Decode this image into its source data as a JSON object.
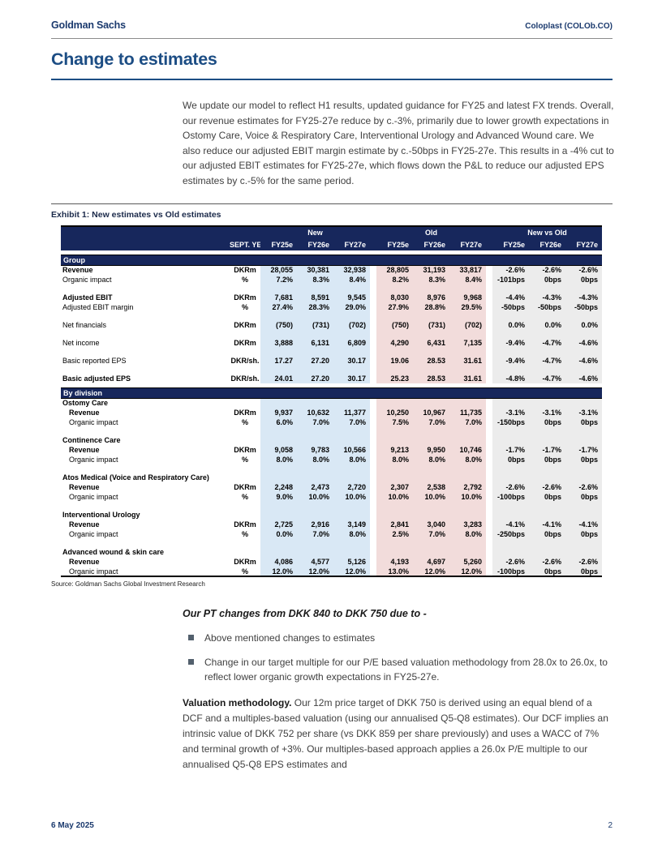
{
  "colors": {
    "navy_bar": "#17275c",
    "navy_text": "#1b3a6e",
    "heading_blue": "#1c4d84",
    "highlight_new": "#d9e8f5",
    "highlight_old": "#f2dcdb",
    "highlight_diff": "#ececec"
  },
  "header": {
    "brand": "Goldman Sachs",
    "ticker": "Coloplast (COLOb.CO)"
  },
  "page_title": "Change to estimates",
  "intro": "We update our model to reflect H1 results, updated guidance for FY25 and latest FX trends. Overall, our revenue estimates for FY25-27e reduce by c.-3%, primarily due to lower growth expectations in Ostomy Care, Voice & Respiratory Care, Interventional Urology and Advanced Wound care. We also reduce our adjusted EBIT margin estimate by c.-50bps in FY25-27e. This results in a -4% cut to our adjusted EBIT estimates for FY25-27e, which flows down the P&L to reduce our adjusted EPS estimates by c.-5% for the same period.",
  "exhibit": {
    "title": "Exhibit 1: New estimates vs Old estimates",
    "source": "Source: Goldman Sachs Global Investment Research"
  },
  "table": {
    "col_groups": [
      "New",
      "Old",
      "New vs Old"
    ],
    "unit_header": "SEPT. YE",
    "year_headers": [
      "FY25e",
      "FY26e",
      "FY27e"
    ],
    "sections": [
      {
        "title": "Group",
        "rows": [
          {
            "type": "data",
            "label": "Revenue",
            "bold": true,
            "unit": "DKRm",
            "new": [
              "28,055",
              "30,381",
              "32,938"
            ],
            "old": [
              "28,805",
              "31,193",
              "33,817"
            ],
            "diff": [
              "-2.6%",
              "-2.6%",
              "-2.6%"
            ]
          },
          {
            "type": "data",
            "label": "Organic impact",
            "bold": false,
            "unit": "%",
            "new": [
              "7.2%",
              "8.3%",
              "8.4%"
            ],
            "old": [
              "8.2%",
              "8.3%",
              "8.4%"
            ],
            "diff": [
              "-101bps",
              "0bps",
              "0bps"
            ]
          },
          {
            "type": "spacer"
          },
          {
            "type": "data",
            "label": "Adjusted EBIT",
            "bold": true,
            "unit": "DKRm",
            "new": [
              "7,681",
              "8,591",
              "9,545"
            ],
            "old": [
              "8,030",
              "8,976",
              "9,968"
            ],
            "diff": [
              "-4.4%",
              "-4.3%",
              "-4.3%"
            ]
          },
          {
            "type": "data",
            "label": "Adjusted EBIT margin",
            "bold": false,
            "unit": "%",
            "new": [
              "27.4%",
              "28.3%",
              "29.0%"
            ],
            "old": [
              "27.9%",
              "28.8%",
              "29.5%"
            ],
            "diff": [
              "-50bps",
              "-50bps",
              "-50bps"
            ]
          },
          {
            "type": "spacer"
          },
          {
            "type": "data",
            "label": "Net financials",
            "bold": false,
            "unit": "DKRm",
            "new": [
              "(750)",
              "(731)",
              "(702)"
            ],
            "old": [
              "(750)",
              "(731)",
              "(702)"
            ],
            "diff": [
              "0.0%",
              "0.0%",
              "0.0%"
            ]
          },
          {
            "type": "spacer"
          },
          {
            "type": "data",
            "label": "Net income",
            "bold": false,
            "unit": "DKRm",
            "new": [
              "3,888",
              "6,131",
              "6,809"
            ],
            "old": [
              "4,290",
              "6,431",
              "7,135"
            ],
            "diff": [
              "-9.4%",
              "-4.7%",
              "-4.6%"
            ]
          },
          {
            "type": "spacer"
          },
          {
            "type": "data",
            "label": "Basic reported EPS",
            "bold": false,
            "unit": "DKR/sh.",
            "new": [
              "17.27",
              "27.20",
              "30.17"
            ],
            "old": [
              "19.06",
              "28.53",
              "31.61"
            ],
            "diff": [
              "-9.4%",
              "-4.7%",
              "-4.6%"
            ]
          },
          {
            "type": "spacer"
          },
          {
            "type": "data",
            "label": "Basic adjusted EPS",
            "bold": true,
            "unit": "DKR/sh.",
            "new": [
              "24.01",
              "27.20",
              "30.17"
            ],
            "old": [
              "25.23",
              "28.53",
              "31.61"
            ],
            "diff": [
              "-4.8%",
              "-4.7%",
              "-4.6%"
            ]
          }
        ]
      },
      {
        "title": "By division",
        "rows": [
          {
            "type": "subhead",
            "label": "Ostomy Care"
          },
          {
            "type": "data",
            "label": "Revenue",
            "bold": true,
            "indent": true,
            "unit": "DKRm",
            "new": [
              "9,937",
              "10,632",
              "11,377"
            ],
            "old": [
              "10,250",
              "10,967",
              "11,735"
            ],
            "diff": [
              "-3.1%",
              "-3.1%",
              "-3.1%"
            ]
          },
          {
            "type": "data",
            "label": "Organic impact",
            "bold": false,
            "indent": true,
            "unit": "%",
            "new": [
              "6.0%",
              "7.0%",
              "7.0%"
            ],
            "old": [
              "7.5%",
              "7.0%",
              "7.0%"
            ],
            "diff": [
              "-150bps",
              "0bps",
              "0bps"
            ]
          },
          {
            "type": "spacer"
          },
          {
            "type": "subhead",
            "label": "Continence Care"
          },
          {
            "type": "data",
            "label": "Revenue",
            "bold": true,
            "indent": true,
            "unit": "DKRm",
            "new": [
              "9,058",
              "9,783",
              "10,566"
            ],
            "old": [
              "9,213",
              "9,950",
              "10,746"
            ],
            "diff": [
              "-1.7%",
              "-1.7%",
              "-1.7%"
            ]
          },
          {
            "type": "data",
            "label": "Organic impact",
            "bold": false,
            "indent": true,
            "unit": "%",
            "new": [
              "8.0%",
              "8.0%",
              "8.0%"
            ],
            "old": [
              "8.0%",
              "8.0%",
              "8.0%"
            ],
            "diff": [
              "0bps",
              "0bps",
              "0bps"
            ]
          },
          {
            "type": "spacer"
          },
          {
            "type": "subhead",
            "label": "Atos Medical (Voice and Respiratory Care)"
          },
          {
            "type": "data",
            "label": "Revenue",
            "bold": true,
            "indent": true,
            "unit": "DKRm",
            "new": [
              "2,248",
              "2,473",
              "2,720"
            ],
            "old": [
              "2,307",
              "2,538",
              "2,792"
            ],
            "diff": [
              "-2.6%",
              "-2.6%",
              "-2.6%"
            ]
          },
          {
            "type": "data",
            "label": "Organic impact",
            "bold": false,
            "indent": true,
            "unit": "%",
            "new": [
              "9.0%",
              "10.0%",
              "10.0%"
            ],
            "old": [
              "10.0%",
              "10.0%",
              "10.0%"
            ],
            "diff": [
              "-100bps",
              "0bps",
              "0bps"
            ]
          },
          {
            "type": "spacer"
          },
          {
            "type": "subhead",
            "label": "Interventional Urology"
          },
          {
            "type": "data",
            "label": "Revenue",
            "bold": true,
            "indent": true,
            "unit": "DKRm",
            "new": [
              "2,725",
              "2,916",
              "3,149"
            ],
            "old": [
              "2,841",
              "3,040",
              "3,283"
            ],
            "diff": [
              "-4.1%",
              "-4.1%",
              "-4.1%"
            ]
          },
          {
            "type": "data",
            "label": "Organic impact",
            "bold": false,
            "indent": true,
            "unit": "%",
            "new": [
              "0.0%",
              "7.0%",
              "8.0%"
            ],
            "old": [
              "2.5%",
              "7.0%",
              "8.0%"
            ],
            "diff": [
              "-250bps",
              "0bps",
              "0bps"
            ]
          },
          {
            "type": "spacer"
          },
          {
            "type": "subhead",
            "label": "Advanced wound & skin care"
          },
          {
            "type": "data",
            "label": "Revenue",
            "bold": true,
            "indent": true,
            "unit": "DKRm",
            "new": [
              "4,086",
              "4,577",
              "5,126"
            ],
            "old": [
              "4,193",
              "4,697",
              "5,260"
            ],
            "diff": [
              "-2.6%",
              "-2.6%",
              "-2.6%"
            ]
          },
          {
            "type": "data",
            "label": "Organic impact",
            "bold": false,
            "indent": true,
            "unit": "%",
            "new": [
              "12.0%",
              "12.0%",
              "12.0%"
            ],
            "old": [
              "13.0%",
              "12.0%",
              "12.0%"
            ],
            "diff": [
              "-100bps",
              "0bps",
              "0bps"
            ]
          }
        ]
      }
    ]
  },
  "pt_heading": "Our PT changes from DKK 840 to DKK 750 due to -",
  "bullets": [
    "Above mentioned changes to estimates",
    "Change in our target multiple for our P/E based valuation methodology from 28.0x to 26.0x, to reflect lower organic growth expectations in FY25-27e."
  ],
  "valuation": {
    "lead": "Valuation methodology.",
    "body": " Our 12m price target of DKK 750 is derived using an equal blend of a DCF and a multiples-based valuation (using our annualised Q5-Q8 estimates). Our DCF implies an intrinsic value of DKK 752 per share (vs DKK 859 per share previously) and uses a WACC of 7% and terminal growth of +3%. Our multiples-based approach applies a 26.0x P/E multiple to our annualised Q5-Q8 EPS estimates and"
  },
  "footer": {
    "date": "6 May 2025",
    "page": "2"
  }
}
